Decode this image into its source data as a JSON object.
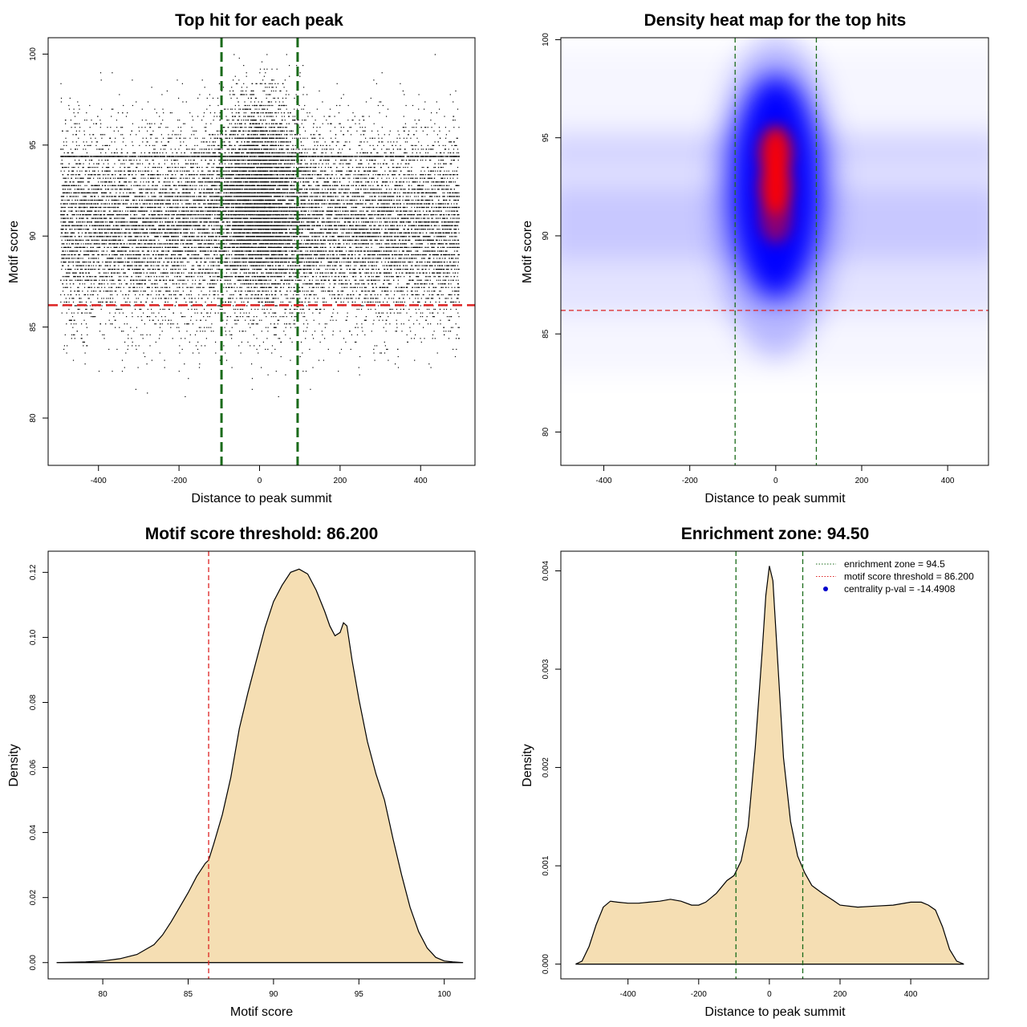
{
  "colors": {
    "points": "#000000",
    "threshold_line": "#dd2222",
    "zone_line": "#1a6b1a",
    "density_fill": "#f5deb3",
    "heat_low": "#ffffff",
    "heat_mid": "#0000ff",
    "heat_high": "#ff0000",
    "legend_point": "#0000cc"
  },
  "chart_data": [
    {
      "id": "scatter",
      "type": "scatter",
      "title": "Top hit for each peak",
      "xlabel": "Distance to peak summit",
      "ylabel": "Motif score",
      "xlim": [
        -525,
        535
      ],
      "ylim": [
        77.4,
        100.9
      ],
      "xticks": [
        -400,
        -200,
        0,
        200,
        400
      ],
      "yticks": [
        80,
        85,
        90,
        95,
        100
      ],
      "vlines": [
        -94.5,
        94.5
      ],
      "hline": 86.2,
      "point_count_estimate": 20000,
      "x_range": [
        -495,
        495
      ],
      "central_y_mean": 92.5,
      "flank_y_mean": 90.5,
      "grid": false
    },
    {
      "id": "heatmap",
      "type": "heatmap",
      "title": "Density heat map for the top hits",
      "xlabel": "Distance to peak summit",
      "ylabel": "Motif score",
      "xlim": [
        -500,
        495
      ],
      "ylim": [
        78.3,
        100.1
      ],
      "xticks": [
        -400,
        -200,
        0,
        200,
        400
      ],
      "yticks": [
        80,
        85,
        90,
        95,
        100
      ],
      "vlines": [
        -94.5,
        94.5
      ],
      "hline": 86.2,
      "hotspots": [
        {
          "x": 0,
          "y": 94.2,
          "level": "high"
        },
        {
          "x": 0,
          "y": 92.5,
          "level": "high"
        },
        {
          "x": 0,
          "y": 91.0,
          "level": "mid"
        }
      ],
      "grid": false
    },
    {
      "id": "score-density",
      "type": "area",
      "title": "Motif score threshold: 86.200",
      "xlabel": "Motif score",
      "ylabel": "Density",
      "xlim": [
        76.8,
        101.8
      ],
      "ylim": [
        -0.005,
        0.1265
      ],
      "xticks": [
        80,
        85,
        90,
        95,
        100
      ],
      "yticks": [
        0.0,
        0.02,
        0.04,
        0.06,
        0.08,
        0.1,
        0.12
      ],
      "ytick_labels": [
        "0.00",
        "0.02",
        "0.04",
        "0.06",
        "0.08",
        "0.10",
        "0.12"
      ],
      "vline": 86.2,
      "x": [
        77.3,
        79,
        80,
        81,
        82,
        82.5,
        83,
        83.5,
        84,
        84.5,
        85,
        85.5,
        86,
        86.2,
        86.5,
        87,
        87.5,
        88,
        88.5,
        89,
        89.5,
        90,
        90.5,
        91,
        91.5,
        92,
        92.5,
        93,
        93.3,
        93.6,
        93.9,
        94.1,
        94.3,
        94.6,
        95,
        95.5,
        96,
        96.5,
        97,
        97.5,
        98,
        98.5,
        99,
        99.5,
        100,
        100.5,
        101.1
      ],
      "y": [
        0.0,
        0.0002,
        0.0005,
        0.0012,
        0.0025,
        0.004,
        0.0055,
        0.0085,
        0.0125,
        0.017,
        0.0215,
        0.0265,
        0.0305,
        0.0315,
        0.0365,
        0.0455,
        0.057,
        0.072,
        0.083,
        0.093,
        0.103,
        0.111,
        0.116,
        0.12,
        0.121,
        0.1195,
        0.1145,
        0.108,
        0.1035,
        0.1005,
        0.1015,
        0.1045,
        0.1035,
        0.093,
        0.081,
        0.068,
        0.058,
        0.05,
        0.038,
        0.027,
        0.017,
        0.0095,
        0.0045,
        0.0016,
        0.0005,
        0.0002,
        0.0
      ]
    },
    {
      "id": "distance-density",
      "type": "area",
      "title": "Enrichment zone: 94.50",
      "xlabel": "Distance to peak summit",
      "ylabel": "Density",
      "xlim": [
        -590,
        620
      ],
      "ylim": [
        -0.00015,
        0.0042
      ],
      "xticks": [
        -400,
        -200,
        0,
        200,
        400
      ],
      "yticks": [
        0.0,
        0.001,
        0.002,
        0.003,
        0.004
      ],
      "ytick_labels": [
        "0.000",
        "0.001",
        "0.002",
        "0.003",
        "0.004"
      ],
      "vlines": [
        -94.5,
        94.5
      ],
      "x": [
        -548,
        -530,
        -510,
        -490,
        -470,
        -450,
        -430,
        -400,
        -370,
        -340,
        -310,
        -280,
        -250,
        -220,
        -200,
        -180,
        -150,
        -120,
        -100,
        -80,
        -60,
        -40,
        -20,
        -10,
        0,
        10,
        20,
        40,
        60,
        80,
        100,
        120,
        150,
        180,
        200,
        250,
        300,
        350,
        400,
        430,
        450,
        470,
        490,
        510,
        530,
        550
      ],
      "y": [
        0.0,
        3e-05,
        0.00018,
        0.0004,
        0.00058,
        0.00064,
        0.00063,
        0.00062,
        0.00062,
        0.00063,
        0.00064,
        0.00066,
        0.00064,
        0.0006,
        0.0006,
        0.00063,
        0.00072,
        0.00085,
        0.0009,
        0.00105,
        0.0014,
        0.0022,
        0.0032,
        0.00375,
        0.00405,
        0.0039,
        0.0033,
        0.0021,
        0.00145,
        0.0011,
        0.00093,
        0.0008,
        0.00072,
        0.00065,
        0.0006,
        0.00058,
        0.00059,
        0.0006,
        0.00063,
        0.00063,
        0.0006,
        0.00055,
        0.00038,
        0.00015,
        3e-05,
        0.0
      ],
      "legend": [
        {
          "label": "enrichment zone = 94.5",
          "style": "dotted",
          "color": "#1a6b1a"
        },
        {
          "label": "motif score threshold = 86.200",
          "style": "dotted",
          "color": "#dd2222"
        },
        {
          "label": "centrality p-val = -14.4908",
          "style": "point",
          "color": "#0000cc"
        }
      ],
      "legend_position": "top-right"
    }
  ]
}
